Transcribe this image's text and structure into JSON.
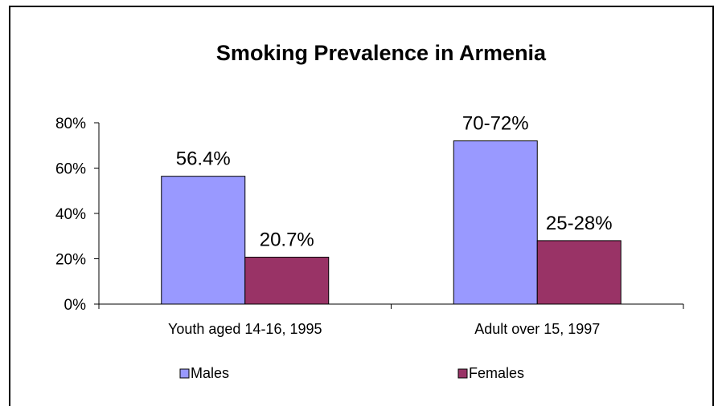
{
  "chart_data": {
    "type": "bar",
    "title": "Smoking Prevalence in Armenia",
    "categories": [
      "Youth aged 14-16, 1995",
      "Adult over 15, 1997"
    ],
    "series": [
      {
        "name": "Males",
        "values": [
          56.4,
          72
        ],
        "data_labels": [
          "56.4%",
          "70-72%"
        ],
        "color": "#9999ff"
      },
      {
        "name": "Females",
        "values": [
          20.7,
          28
        ],
        "data_labels": [
          "20.7%",
          "25-28%"
        ],
        "color": "#993366"
      }
    ],
    "y_ticks": [
      {
        "value": 0,
        "label": "0%"
      },
      {
        "value": 20,
        "label": "20%"
      },
      {
        "value": 40,
        "label": "40%"
      },
      {
        "value": 60,
        "label": "60%"
      },
      {
        "value": 80,
        "label": "80%"
      }
    ],
    "ylim": [
      0,
      80
    ],
    "grid": false,
    "legend_position": "bottom"
  }
}
